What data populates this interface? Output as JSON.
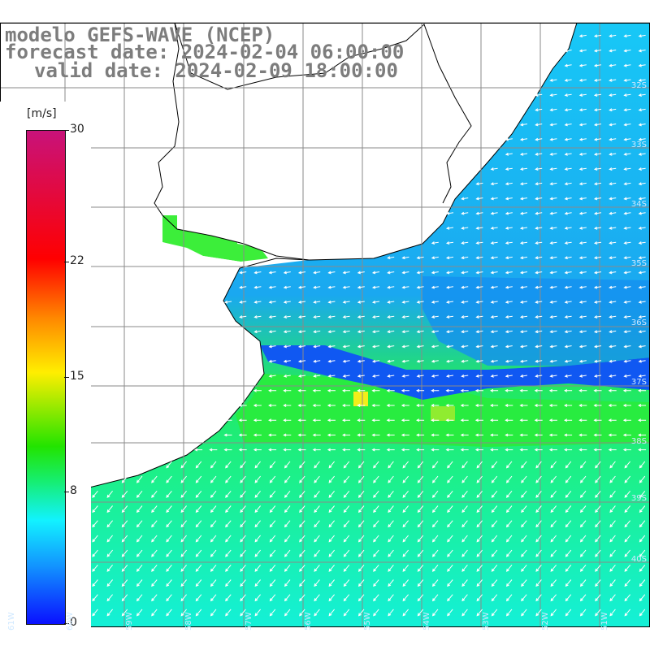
{
  "title": {
    "line1": "modelo GEFS-WAVE (NCEP)",
    "line2": "forecast date: 2024-02-04 06:00:00",
    "line3": "valid date: 2024-02-09 18:00:00"
  },
  "legend": {
    "units": "[m/s]",
    "ticks": [
      {
        "label": "30",
        "value": 30
      },
      {
        "label": "22",
        "value": 22
      },
      {
        "label": "15",
        "value": 15
      },
      {
        "label": "8",
        "value": 8
      },
      {
        "label": "0",
        "value": 0
      }
    ],
    "colors": [
      "#0a10ff",
      "#1296ff",
      "#12f2ff",
      "#16ee70",
      "#22e400",
      "#ffee00",
      "#ff8800",
      "#ff0000",
      "#c8127a"
    ]
  },
  "map": {
    "region": "South Atlantic, off Brazil / Uruguay / Argentina",
    "lat_labels": [
      "32S",
      "33S",
      "34S",
      "35S",
      "36S",
      "37S",
      "38S",
      "39S",
      "40S"
    ],
    "lon_labels": [
      "61W",
      "60W",
      "59W",
      "58W",
      "57W",
      "56W",
      "55W",
      "54W",
      "53W",
      "52W",
      "51W"
    ],
    "colors": {
      "land": "#ffffff",
      "coastline": "#000000",
      "grid": "#8a8a8a",
      "arrows": "#ffffff"
    }
  }
}
